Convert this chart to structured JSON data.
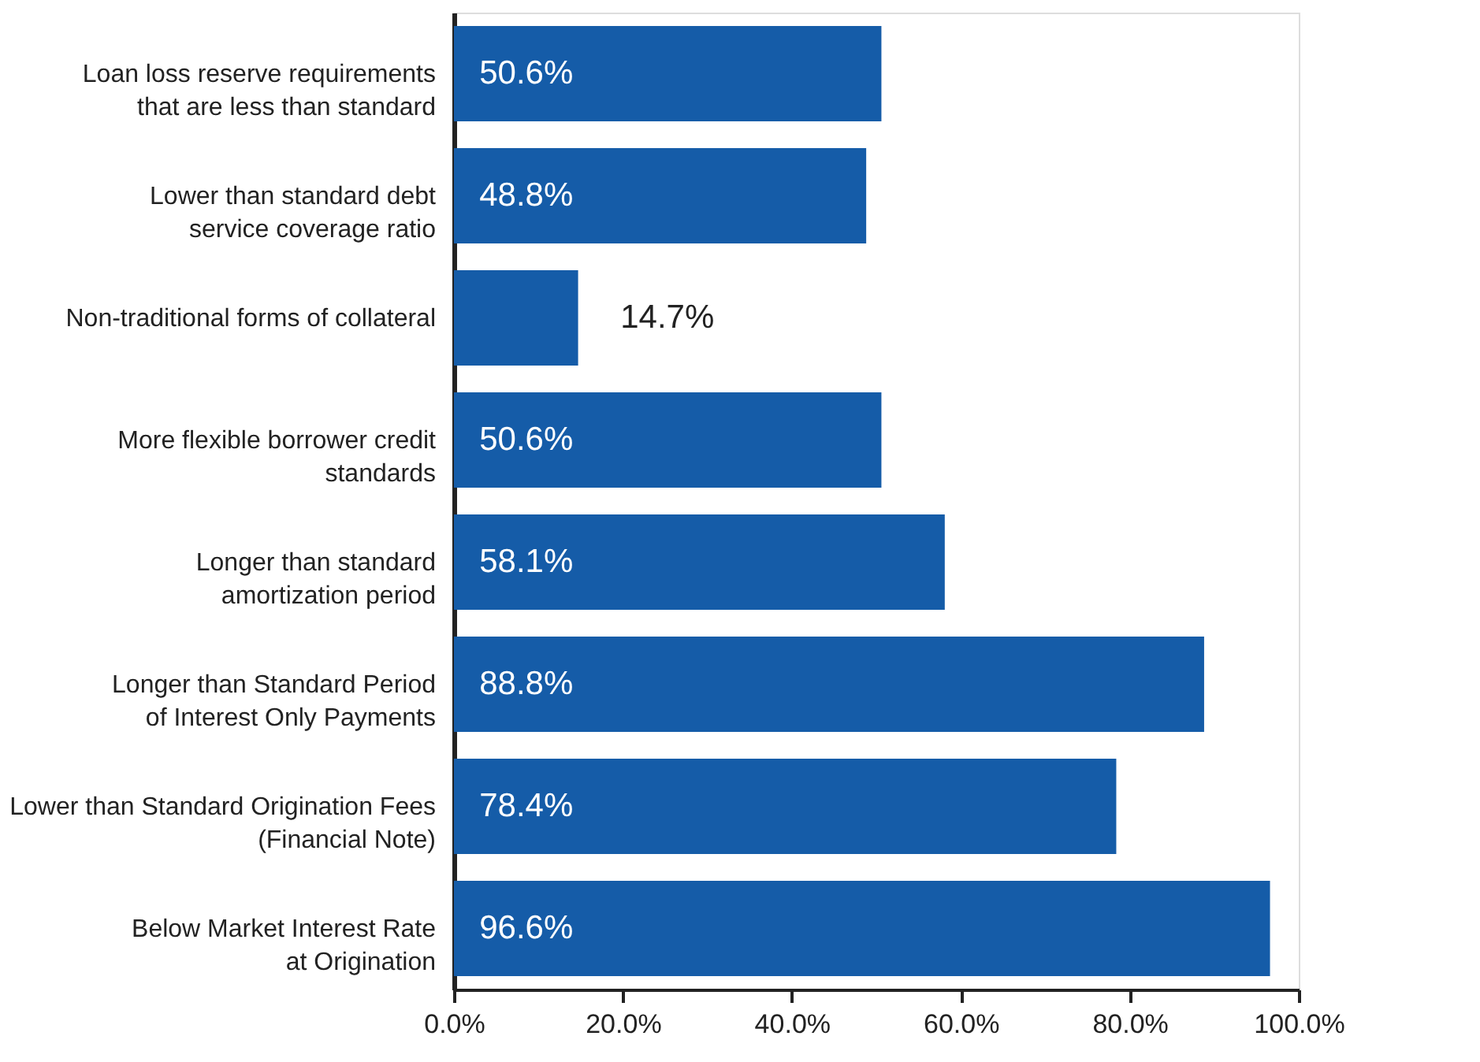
{
  "chart_data": {
    "type": "bar",
    "orientation": "horizontal",
    "categories": [
      "Loan loss reserve requirements\nthat are less than standard",
      "Lower than standard debt\nservice coverage ratio",
      "Non-traditional forms of collateral",
      "More flexible borrower credit\nstandards",
      "Longer than standard\namortization period",
      "Longer than Standard Period\nof Interest Only Payments",
      "Lower than Standard Origination Fees\n(Financial Note)",
      "Below Market Interest Rate\nat Origination"
    ],
    "values": [
      50.6,
      48.8,
      14.7,
      50.6,
      58.1,
      88.8,
      78.4,
      96.6
    ],
    "value_labels": [
      "50.6%",
      "48.8%",
      "14.7%",
      "50.6%",
      "58.1%",
      "88.8%",
      "78.4%",
      "96.6%"
    ],
    "color": "#155ca8",
    "xlim": [
      0,
      100
    ],
    "xticks": [
      {
        "value": 0,
        "label": "0.0%"
      },
      {
        "value": 20,
        "label": "20.0%"
      },
      {
        "value": 40,
        "label": "40.0%"
      },
      {
        "value": 60,
        "label": "60.0%"
      },
      {
        "value": 80,
        "label": "80.0%"
      },
      {
        "value": 100,
        "label": "100.0%"
      }
    ],
    "grid": false
  }
}
